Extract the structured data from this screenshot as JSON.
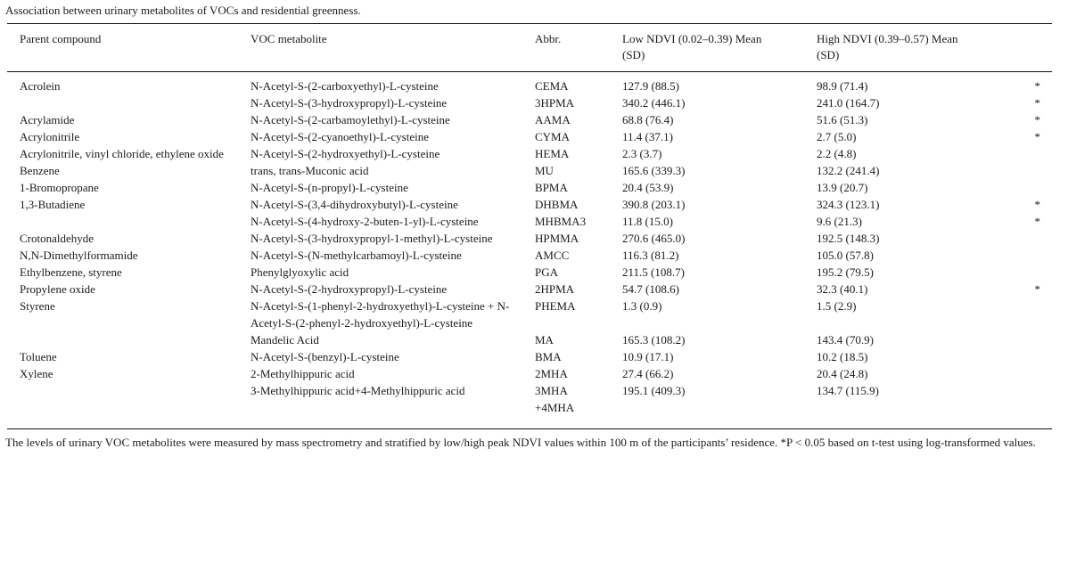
{
  "title": "Association between urinary metabolites of VOCs and residential greenness.",
  "table": {
    "columns": [
      "Parent compound",
      "VOC metabolite",
      "Abbr.",
      "Low NDVI (0.02–0.39) Mean (SD)",
      "High NDVI (0.39–0.57) Mean (SD)",
      ""
    ],
    "rows": [
      {
        "parent": "Acrolein",
        "metabolite": "N-Acetyl-S-(2-carboxyethyl)-L-cysteine",
        "abbr": "CEMA",
        "low_mean_sd": "127.9 (88.5)",
        "high_mean_sd": "98.9 (71.4)",
        "significance": "*"
      },
      {
        "parent": "",
        "metabolite": "N-Acetyl-S-(3-hydroxypropyl)-L-cysteine",
        "abbr": "3HPMA",
        "low_mean_sd": "340.2 (446.1)",
        "high_mean_sd": "241.0 (164.7)",
        "significance": "*"
      },
      {
        "parent": "Acrylamide",
        "metabolite": "N-Acetyl-S-(2-carbamoylethyl)-L-cysteine",
        "abbr": "AAMA",
        "low_mean_sd": "68.8 (76.4)",
        "high_mean_sd": "51.6 (51.3)",
        "significance": "*"
      },
      {
        "parent": "Acrylonitrile",
        "metabolite": "N-Acetyl-S-(2-cyanoethyl)-L-cysteine",
        "abbr": "CYMA",
        "low_mean_sd": "11.4 (37.1)",
        "high_mean_sd": "2.7 (5.0)",
        "significance": "*"
      },
      {
        "parent": "Acrylonitrile, vinyl chloride, ethylene oxide",
        "metabolite": "N-Acetyl-S-(2-hydroxyethyl)-L-cysteine",
        "abbr": "HEMA",
        "low_mean_sd": "2.3 (3.7)",
        "high_mean_sd": "2.2 (4.8)",
        "significance": ""
      },
      {
        "parent": "Benzene",
        "metabolite": "trans, trans-Muconic acid",
        "abbr": "MU",
        "low_mean_sd": "165.6 (339.3)",
        "high_mean_sd": "132.2 (241.4)",
        "significance": ""
      },
      {
        "parent": "1-Bromopropane",
        "metabolite": "N-Acetyl-S-(n-propyl)-L-cysteine",
        "abbr": "BPMA",
        "low_mean_sd": "20.4 (53.9)",
        "high_mean_sd": "13.9 (20.7)",
        "significance": ""
      },
      {
        "parent": "1,3-Butadiene",
        "metabolite": "N-Acetyl-S-(3,4-dihydroxybutyl)-L-cysteine",
        "abbr": "DHBMA",
        "low_mean_sd": "390.8 (203.1)",
        "high_mean_sd": "324.3 (123.1)",
        "significance": "*"
      },
      {
        "parent": "",
        "metabolite": "N-Acetyl-S-(4-hydroxy-2-buten-1-yl)-L-cysteine",
        "abbr": "MHBMA3",
        "low_mean_sd": "11.8 (15.0)",
        "high_mean_sd": "9.6 (21.3)",
        "significance": "*"
      },
      {
        "parent": "Crotonaldehyde",
        "metabolite": "N-Acetyl-S-(3-hydroxypropyl-1-methyl)-L-cysteine",
        "abbr": "HPMMA",
        "low_mean_sd": "270.6 (465.0)",
        "high_mean_sd": "192.5 (148.3)",
        "significance": ""
      },
      {
        "parent": "N,N-Dimethylformamide",
        "metabolite": "N-Acetyl-S-(N-methylcarbamoyl)-L-cysteine",
        "abbr": "AMCC",
        "low_mean_sd": "116.3 (81.2)",
        "high_mean_sd": "105.0 (57.8)",
        "significance": ""
      },
      {
        "parent": "Ethylbenzene, styrene",
        "metabolite": "Phenylglyoxylic acid",
        "abbr": "PGA",
        "low_mean_sd": "211.5 (108.7)",
        "high_mean_sd": "195.2 (79.5)",
        "significance": ""
      },
      {
        "parent": "Propylene oxide",
        "metabolite": "N-Acetyl-S-(2-hydroxypropyl)-L-cysteine",
        "abbr": "2HPMA",
        "low_mean_sd": "54.7 (108.6)",
        "high_mean_sd": "32.3 (40.1)",
        "significance": "*"
      },
      {
        "parent": "Styrene",
        "metabolite": "N-Acetyl-S-(1-phenyl-2-hydroxyethyl)-L-cysteine + N-Acetyl-S-(2-phenyl-2-hydroxyethyl)-L-cysteine",
        "abbr": "PHEMA",
        "low_mean_sd": "1.3 (0.9)",
        "high_mean_sd": "1.5 (2.9)",
        "significance": ""
      },
      {
        "parent": "",
        "metabolite": "Mandelic Acid",
        "abbr": "MA",
        "low_mean_sd": "165.3 (108.2)",
        "high_mean_sd": "143.4 (70.9)",
        "significance": ""
      },
      {
        "parent": "Toluene",
        "metabolite": "N-Acetyl-S-(benzyl)-L-cysteine",
        "abbr": "BMA",
        "low_mean_sd": "10.9 (17.1)",
        "high_mean_sd": "10.2 (18.5)",
        "significance": ""
      },
      {
        "parent": "Xylene",
        "metabolite": "2-Methylhippuric acid",
        "abbr": "2MHA",
        "low_mean_sd": "27.4 (66.2)",
        "high_mean_sd": "20.4 (24.8)",
        "significance": ""
      },
      {
        "parent": "",
        "metabolite": "3-Methylhippuric acid+4-Methylhippuric acid",
        "abbr": "3MHA +4MHA",
        "low_mean_sd": "195.1 (409.3)",
        "high_mean_sd": "134.7 (115.9)",
        "significance": ""
      }
    ]
  },
  "footnote": "The levels of urinary VOC metabolites were measured by mass spectrometry and stratified by low/high peak NDVI values within 100 m of the participants’ residence. *P < 0.05 based on t-test using log-transformed values."
}
